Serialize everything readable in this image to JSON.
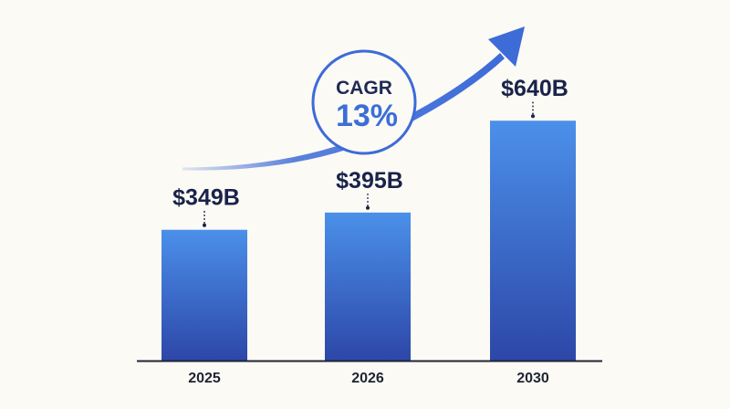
{
  "chart_data": {
    "type": "bar",
    "categories": [
      "2025",
      "2026",
      "2030"
    ],
    "values": [
      349,
      395,
      640
    ],
    "value_labels": [
      "$349B",
      "$395B",
      "$640B"
    ],
    "title": "",
    "xlabel": "",
    "ylabel": "",
    "ylim": [
      0,
      660
    ],
    "grid": false,
    "legend": "none",
    "annotation": {
      "label": "CAGR",
      "value": "13%"
    },
    "colors": {
      "bar_top": "#4b90ea",
      "bar_bottom": "#2d47a8",
      "arrow": "#3d6bd8",
      "text": "#19234a",
      "background": "#fcfaf4"
    }
  }
}
